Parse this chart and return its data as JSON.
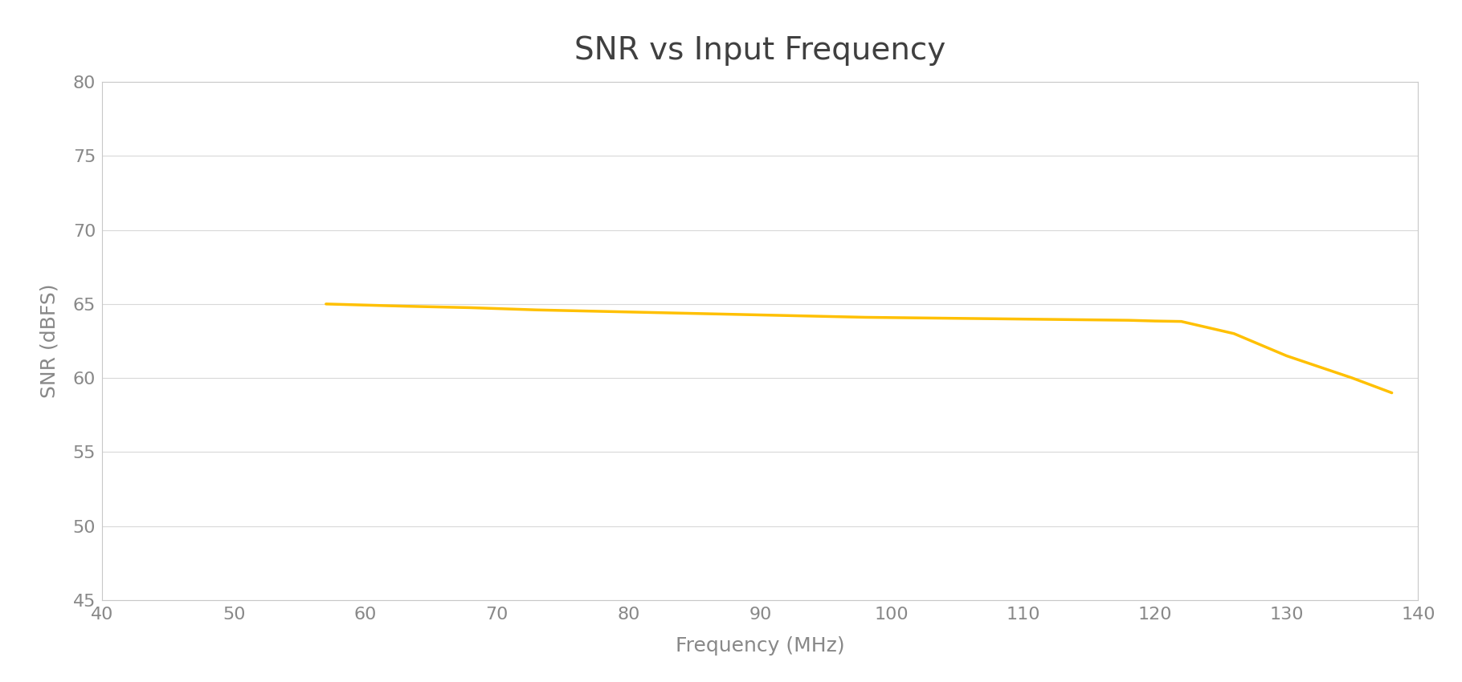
{
  "title": "SNR vs Input Frequency",
  "xlabel": "Frequency (MHz)",
  "ylabel": "SNR (dBFS)",
  "line_color": "#FFC000",
  "line_width": 2.5,
  "background_color": "#FFFFFF",
  "plot_bg_color": "#FFFFFF",
  "grid_color": "#D8D8D8",
  "spine_color": "#C8C8C8",
  "xlim": [
    40,
    140
  ],
  "ylim": [
    45,
    80
  ],
  "xticks": [
    40,
    50,
    60,
    70,
    80,
    90,
    100,
    110,
    120,
    130,
    140
  ],
  "yticks": [
    45,
    50,
    55,
    60,
    65,
    70,
    75,
    80
  ],
  "title_fontsize": 28,
  "axis_label_fontsize": 18,
  "tick_fontsize": 16,
  "tick_color": "#888888",
  "title_color": "#404040",
  "x_data": [
    57,
    63,
    68,
    73,
    78,
    83,
    88,
    93,
    98,
    103,
    108,
    113,
    118,
    120,
    122,
    126,
    130,
    135,
    138
  ],
  "y_data": [
    65.0,
    64.85,
    64.75,
    64.6,
    64.5,
    64.4,
    64.3,
    64.2,
    64.1,
    64.05,
    64.0,
    63.95,
    63.9,
    63.85,
    63.82,
    63.0,
    61.5,
    60.0,
    59.0
  ]
}
